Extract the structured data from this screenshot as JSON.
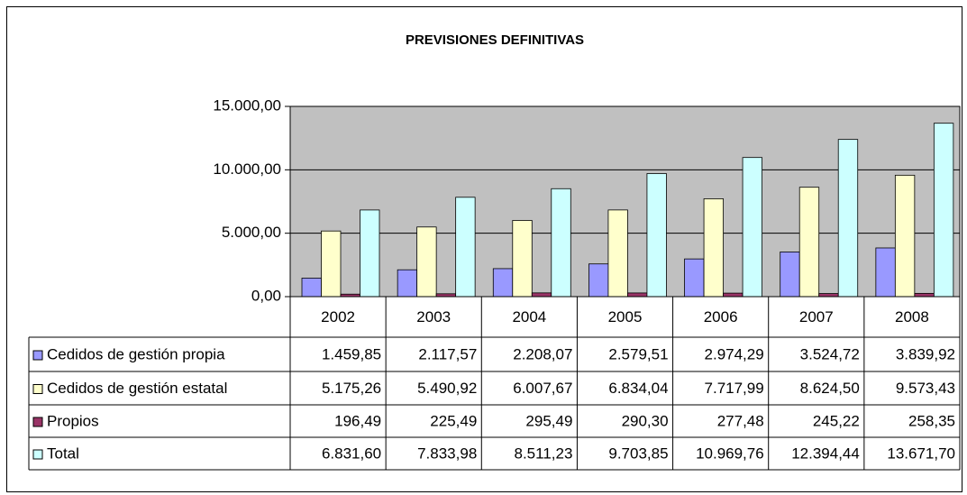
{
  "chart_data": {
    "type": "bar",
    "title": "PREVISIONES DEFINITIVAS",
    "categories": [
      "2002",
      "2003",
      "2004",
      "2005",
      "2006",
      "2007",
      "2008"
    ],
    "series": [
      {
        "name": "Cedidos de gestión propia",
        "color": "#9999ff",
        "values": [
          1459.85,
          2117.57,
          2208.07,
          2579.51,
          2974.29,
          3524.72,
          3839.92
        ],
        "value_labels": [
          "1.459,85",
          "2.117,57",
          "2.208,07",
          "2.579,51",
          "2.974,29",
          "3.524,72",
          "3.839,92"
        ]
      },
      {
        "name": "Cedidos de gestión estatal",
        "color": "#ffffcc",
        "values": [
          5175.26,
          5490.92,
          6007.67,
          6834.04,
          7717.99,
          8624.5,
          9573.43
        ],
        "value_labels": [
          "5.175,26",
          "5.490,92",
          "6.007,67",
          "6.834,04",
          "7.717,99",
          "8.624,50",
          "9.573,43"
        ]
      },
      {
        "name": "Propios",
        "color": "#993366",
        "values": [
          196.49,
          225.49,
          295.49,
          290.3,
          277.48,
          245.22,
          258.35
        ],
        "value_labels": [
          "196,49",
          "225,49",
          "295,49",
          "290,30",
          "277,48",
          "245,22",
          "258,35"
        ]
      },
      {
        "name": "Total",
        "color": "#ccffff",
        "values": [
          6831.6,
          7833.98,
          8511.23,
          9703.85,
          10969.76,
          12394.44,
          13671.7
        ],
        "value_labels": [
          "6.831,60",
          "7.833,98",
          "8.511,23",
          "9.703,85",
          "10.969,76",
          "12.394,44",
          "13.671,70"
        ]
      }
    ],
    "ylim": [
      0,
      15000
    ],
    "yticks": [
      {
        "value": 0,
        "label": "0,00"
      },
      {
        "value": 5000,
        "label": "5.000,00"
      },
      {
        "value": 10000,
        "label": "10.000,00"
      },
      {
        "value": 15000,
        "label": "15.000,00"
      }
    ],
    "grid": true,
    "plot_background": "#c0c0c0"
  }
}
